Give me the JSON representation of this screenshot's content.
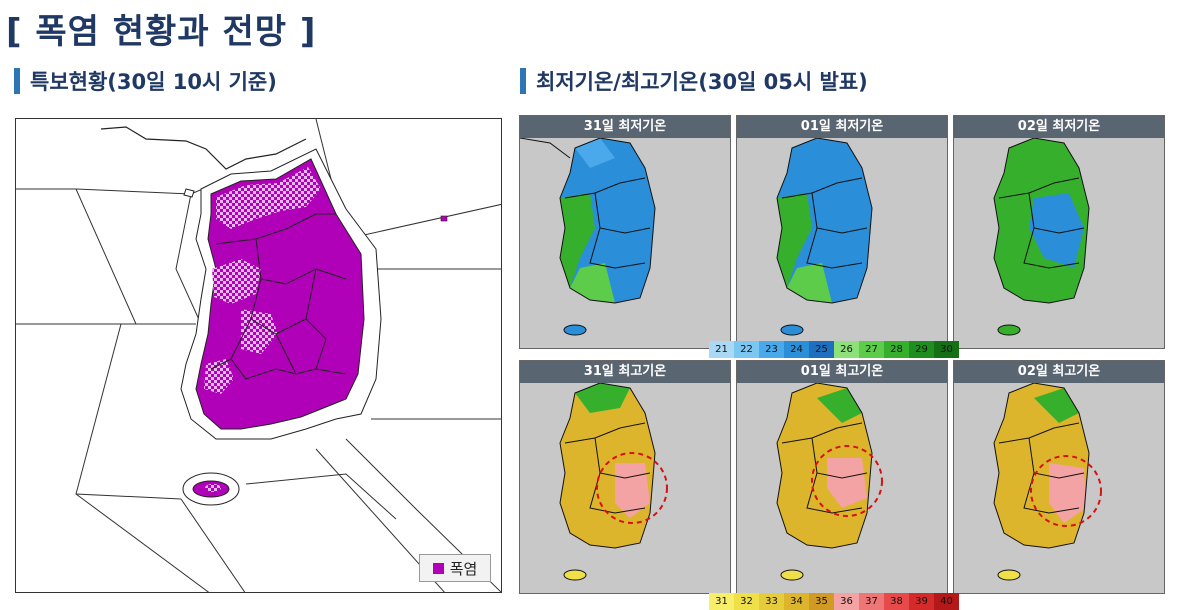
{
  "title": "[ 폭염 현황과 전망 ]",
  "left_section": {
    "title": "특보현황(30일 10시 기준)",
    "legend_label": "폭염",
    "legend_color": "#b000b8"
  },
  "right_section": {
    "title": "최저기온/최고기온(30일 05시 발표)"
  },
  "min_panels": [
    {
      "label": "31일 최저기온"
    },
    {
      "label": "01일 최저기온"
    },
    {
      "label": "02일 최저기온"
    }
  ],
  "max_panels": [
    {
      "label": "31일 최고기온"
    },
    {
      "label": "01일 최고기온"
    },
    {
      "label": "02일 최고기온"
    }
  ],
  "min_scale": {
    "values": [
      "21",
      "22",
      "23",
      "24",
      "25",
      "26",
      "27",
      "28",
      "29",
      "30"
    ],
    "colors": [
      "#aad8f5",
      "#7cc6f2",
      "#4aa9ea",
      "#2a8ed8",
      "#1f6fbf",
      "#8ee07a",
      "#5ccc4a",
      "#36b02c",
      "#1f8e1f",
      "#157015"
    ]
  },
  "max_scale": {
    "values": [
      "31",
      "32",
      "33",
      "34",
      "35",
      "36",
      "37",
      "38",
      "39",
      "40"
    ],
    "colors": [
      "#f7ef6a",
      "#efe04a",
      "#e6cc3a",
      "#ddb52c",
      "#d19a24",
      "#f3a3a3",
      "#ee7676",
      "#e64a4a",
      "#d42a2a",
      "#b51818"
    ]
  }
}
